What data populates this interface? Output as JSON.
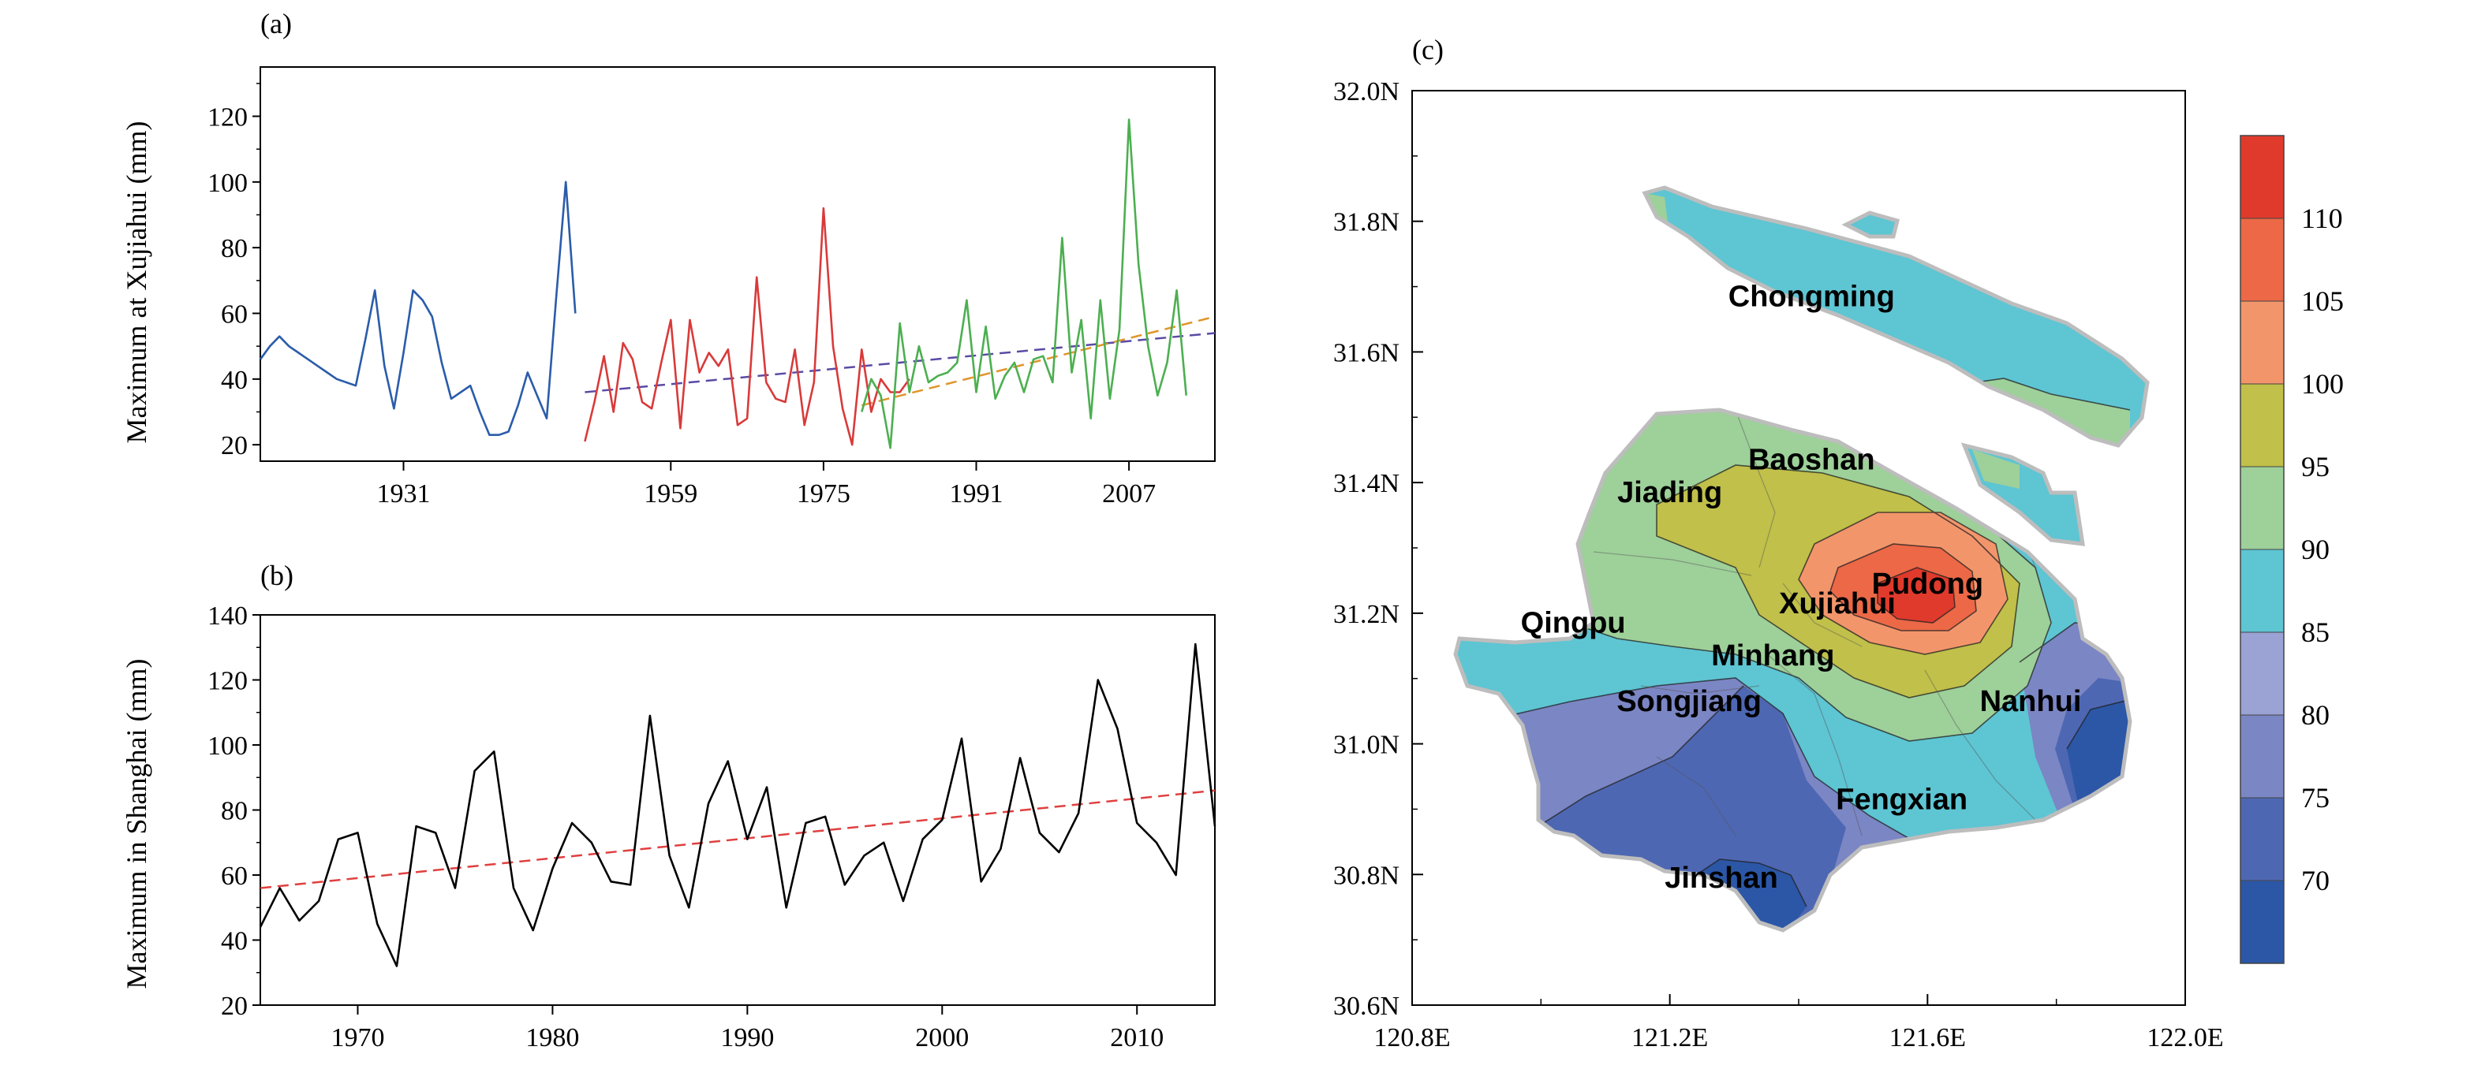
{
  "chart_data": [
    {
      "panel_label": "(a)",
      "type": "line",
      "ylabel": "Maximum at Xujiahui (mm)",
      "xlim": [
        1916,
        2016
      ],
      "ylim": [
        15,
        135
      ],
      "y_ticks": [
        20,
        40,
        60,
        80,
        100,
        120
      ],
      "x_ticks": [
        1931,
        1959,
        1975,
        1991,
        2007
      ],
      "colors": {
        "period1": "#2a5caa",
        "period2": "#d93a3a",
        "period3": "#4caf50",
        "trend_purple": "#5b4aa5",
        "trend_orange": "#e0952a"
      },
      "series": [
        {
          "color_key": "period1",
          "x": [
            1916,
            1917,
            1918,
            1919,
            1920,
            1921,
            1922,
            1923,
            1924,
            1925,
            1926,
            1927,
            1928,
            1929,
            1930,
            1931,
            1932,
            1933,
            1934,
            1935,
            1936,
            1937,
            1938,
            1939,
            1940,
            1941,
            1942,
            1943,
            1944,
            1945,
            1946,
            1947,
            1948,
            1949,
            1950,
            1951,
            1952,
            1953,
            1954
          ],
          "y": [
            46,
            50,
            53,
            50,
            48,
            46,
            44,
            42,
            40,
            39,
            38,
            52,
            67,
            44,
            31,
            48,
            67,
            64,
            59,
            45,
            34,
            36,
            38,
            30,
            23,
            23,
            24,
            32,
            42,
            35,
            28,
            65,
            100,
            60,
            null,
            null,
            null,
            null,
            null
          ]
        },
        {
          "color_key": "period2",
          "x": [
            1950,
            1951,
            1952,
            1953,
            1954,
            1955,
            1956,
            1957,
            1958,
            1959,
            1960,
            1961,
            1962,
            1963,
            1964,
            1965,
            1966,
            1967,
            1968,
            1969,
            1970,
            1971,
            1972,
            1973,
            1974,
            1975,
            1976,
            1977,
            1978,
            1979,
            1980,
            1981,
            1982,
            1983,
            1984
          ],
          "y": [
            21,
            33,
            47,
            30,
            51,
            46,
            33,
            31,
            45,
            58,
            25,
            58,
            42,
            48,
            44,
            49,
            26,
            28,
            71,
            39,
            34,
            33,
            49,
            26,
            39,
            92,
            50,
            31,
            20,
            49,
            30,
            40,
            36,
            36,
            40
          ]
        },
        {
          "color_key": "period3",
          "x": [
            1979,
            1980,
            1981,
            1982,
            1983,
            1984,
            1985,
            1986,
            1987,
            1988,
            1989,
            1990,
            1991,
            1992,
            1993,
            1994,
            1995,
            1996,
            1997,
            1998,
            1999,
            2000,
            2001,
            2002,
            2003,
            2004,
            2005,
            2006,
            2007,
            2008,
            2009,
            2010,
            2011,
            2012,
            2013,
            2014
          ],
          "y": [
            30,
            40,
            35,
            19,
            57,
            36,
            50,
            39,
            41,
            42,
            45,
            64,
            36,
            56,
            34,
            41,
            45,
            36,
            46,
            47,
            39,
            83,
            42,
            58,
            28,
            64,
            34,
            55,
            119,
            75,
            50,
            35,
            45,
            67,
            35,
            null
          ]
        }
      ],
      "trends": [
        {
          "color_key": "trend_purple",
          "x": [
            1950,
            2016
          ],
          "y": [
            36,
            54
          ]
        },
        {
          "color_key": "trend_orange",
          "x": [
            1979,
            2016
          ],
          "y": [
            32,
            59
          ]
        }
      ]
    },
    {
      "panel_label": "(b)",
      "type": "line",
      "ylabel": "Maximum in Shanghai (mm)",
      "xlim": [
        1965,
        2014
      ],
      "ylim": [
        20,
        140
      ],
      "y_ticks": [
        20,
        40,
        60,
        80,
        100,
        120,
        140
      ],
      "x_ticks": [
        1970,
        1980,
        1990,
        2000,
        2010
      ],
      "colors": {
        "line": "#000000",
        "trend": "#e04040"
      },
      "series": [
        {
          "color_key": "line",
          "x": [
            1965,
            1966,
            1967,
            1968,
            1969,
            1970,
            1971,
            1972,
            1973,
            1974,
            1975,
            1976,
            1977,
            1978,
            1979,
            1980,
            1981,
            1982,
            1983,
            1984,
            1985,
            1986,
            1987,
            1988,
            1989,
            1990,
            1991,
            1992,
            1993,
            1994,
            1995,
            1996,
            1997,
            1998,
            1999,
            2000,
            2001,
            2002,
            2003,
            2004,
            2005,
            2006,
            2007,
            2008,
            2009,
            2010,
            2011,
            2012,
            2013,
            2014
          ],
          "y": [
            44,
            56,
            46,
            52,
            71,
            73,
            45,
            32,
            75,
            73,
            56,
            92,
            98,
            56,
            43,
            62,
            76,
            70,
            58,
            57,
            109,
            66,
            50,
            82,
            95,
            71,
            87,
            50,
            76,
            78,
            57,
            66,
            70,
            52,
            71,
            77,
            102,
            58,
            68,
            96,
            73,
            67,
            79,
            120,
            105,
            76,
            70,
            60,
            131,
            75
          ]
        }
      ],
      "trends": [
        {
          "color_key": "trend",
          "x": [
            1965,
            2014
          ],
          "y": [
            56,
            86
          ]
        }
      ]
    },
    {
      "panel_label": "(c)",
      "type": "heatmap",
      "lon_ticks": [
        "120.8E",
        "121.2E",
        "121.6E",
        "122.0E"
      ],
      "lat_ticks": [
        "30.6N",
        "30.8N",
        "31.0N",
        "31.2N",
        "31.4N",
        "31.6N",
        "31.8N",
        "32.0N"
      ],
      "xlim": [
        120.8,
        122.0
      ],
      "ylim": [
        30.6,
        32.0
      ],
      "colorbar": {
        "labels": [
          "110",
          "105",
          "100",
          "95",
          "90",
          "85",
          "80",
          "75",
          "70"
        ],
        "bands": [
          "#2c57a7",
          "#4e67b3",
          "#7b86c4",
          "#9aa3d3",
          "#5ec5d3",
          "#9ed09a",
          "#c0c04a",
          "#f3956b",
          "#ec6846",
          "#e03a2c"
        ]
      },
      "districts": [
        {
          "name": "Chongming",
          "lon": 121.42,
          "lat": 31.67
        },
        {
          "name": "Baoshan",
          "lon": 121.42,
          "lat": 31.42
        },
        {
          "name": "Jiading",
          "lon": 121.2,
          "lat": 31.37
        },
        {
          "name": "Pudong",
          "lon": 121.6,
          "lat": 31.23
        },
        {
          "name": "Xujiahui",
          "lon": 121.46,
          "lat": 31.2
        },
        {
          "name": "Qingpu",
          "lon": 121.05,
          "lat": 31.17
        },
        {
          "name": "Minhang",
          "lon": 121.36,
          "lat": 31.12
        },
        {
          "name": "Songjiang",
          "lon": 121.23,
          "lat": 31.05
        },
        {
          "name": "Nanhui",
          "lon": 121.76,
          "lat": 31.05
        },
        {
          "name": "Fengxian",
          "lon": 121.56,
          "lat": 30.9
        },
        {
          "name": "Jinshan",
          "lon": 121.28,
          "lat": 30.78
        }
      ]
    }
  ]
}
